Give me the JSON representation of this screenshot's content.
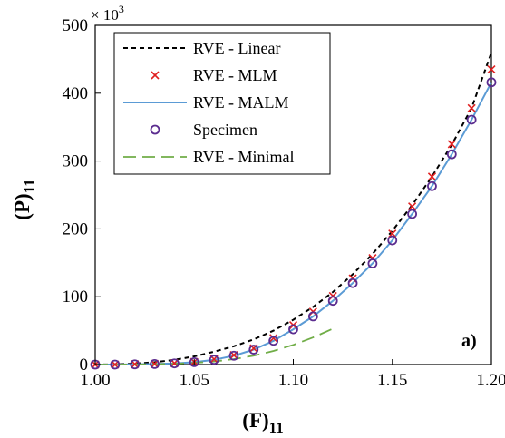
{
  "chart_data": {
    "type": "line",
    "xlabel": "(F)",
    "xlabel_subscript": "11",
    "ylabel": "(P)",
    "ylabel_subscript": "11",
    "y_multiplier": "× 10",
    "y_multiplier_exp": "3",
    "panel_label": "a)",
    "xlim": [
      1.0,
      1.2
    ],
    "ylim": [
      0,
      500
    ],
    "xticks": [
      "1.00",
      "1.05",
      "1.10",
      "1.15",
      "1.20"
    ],
    "xtick_values": [
      1.0,
      1.05,
      1.1,
      1.15,
      1.2
    ],
    "yticks": [
      "0",
      "100",
      "200",
      "300",
      "400",
      "500"
    ],
    "ytick_values": [
      0,
      100,
      200,
      300,
      400,
      500
    ],
    "grid": false,
    "legend_position": "top-left",
    "series": [
      {
        "name": "RVE - Linear",
        "style": "dashed-line",
        "color": "#000000",
        "x": [
          1.0,
          1.01,
          1.02,
          1.03,
          1.04,
          1.05,
          1.06,
          1.07,
          1.08,
          1.09,
          1.1,
          1.11,
          1.12,
          1.13,
          1.14,
          1.15,
          1.16,
          1.17,
          1.18,
          1.19,
          1.2
        ],
        "y": [
          0,
          0.3,
          1.5,
          3.5,
          7,
          12,
          19,
          27,
          37,
          50,
          66,
          85,
          107,
          133,
          163,
          197,
          235,
          277,
          324,
          378,
          460
        ]
      },
      {
        "name": "RVE - MLM",
        "style": "x-marker",
        "color": "#e02020",
        "x": [
          1.0,
          1.01,
          1.02,
          1.03,
          1.04,
          1.05,
          1.06,
          1.07,
          1.08,
          1.09,
          1.1,
          1.11,
          1.12,
          1.13,
          1.14,
          1.15,
          1.16,
          1.17,
          1.18,
          1.19,
          1.2
        ],
        "y": [
          0,
          0,
          0.5,
          1,
          2,
          4,
          8,
          14,
          24,
          39,
          58,
          78,
          101,
          127,
          157,
          193,
          233,
          277,
          325,
          378,
          435
        ]
      },
      {
        "name": "RVE - MALM",
        "style": "solid-line",
        "color": "#5b9bd5",
        "x": [
          1.0,
          1.01,
          1.02,
          1.03,
          1.04,
          1.05,
          1.06,
          1.07,
          1.08,
          1.09,
          1.1,
          1.11,
          1.12,
          1.13,
          1.14,
          1.15,
          1.16,
          1.17,
          1.18,
          1.19,
          1.2
        ],
        "y": [
          0,
          0,
          0.3,
          0.8,
          1.7,
          3.5,
          7,
          13,
          22,
          35,
          52,
          71,
          94,
          120,
          149,
          183,
          222,
          263,
          310,
          361,
          416
        ]
      },
      {
        "name": "Specimen",
        "style": "circle-marker",
        "color": "#5b2c8f",
        "x": [
          1.0,
          1.01,
          1.02,
          1.03,
          1.04,
          1.05,
          1.06,
          1.07,
          1.08,
          1.09,
          1.1,
          1.11,
          1.12,
          1.13,
          1.14,
          1.15,
          1.16,
          1.17,
          1.18,
          1.19,
          1.2
        ],
        "y": [
          0,
          0,
          0.3,
          0.8,
          1.7,
          3.5,
          7,
          13,
          22,
          35,
          52,
          71,
          94,
          120,
          149,
          183,
          222,
          263,
          310,
          361,
          416
        ]
      },
      {
        "name": "RVE - Minimal",
        "style": "long-dash-line",
        "color": "#70ad47",
        "x": [
          1.0,
          1.01,
          1.02,
          1.03,
          1.04,
          1.05,
          1.06,
          1.07,
          1.08,
          1.09,
          1.1,
          1.11,
          1.12
        ],
        "y": [
          0,
          0,
          0.2,
          0.5,
          1.2,
          2.5,
          4.5,
          8,
          13,
          20,
          29,
          40,
          53
        ]
      }
    ]
  }
}
